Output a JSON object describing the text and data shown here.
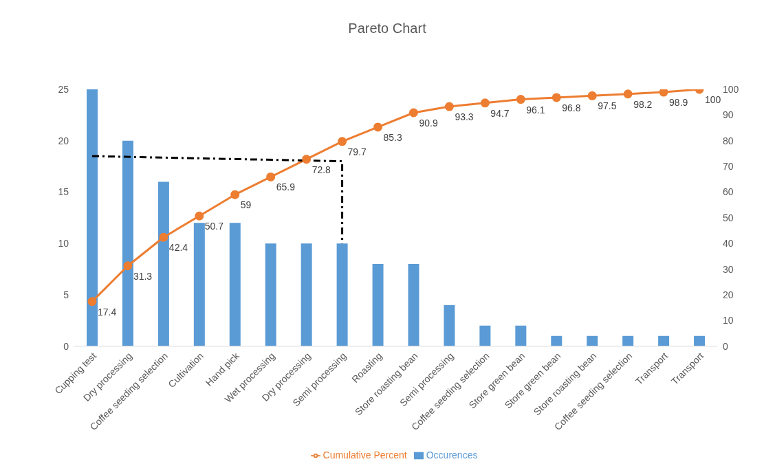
{
  "chart_data": {
    "type": "bar",
    "title": "Pareto Chart",
    "categories": [
      "Cupping test",
      "Dry processing",
      "Coffee seeding selection",
      "Cultivation",
      "Hand pick",
      "Wet processing",
      "Dry processing",
      "Semi processing",
      "Roasting",
      "Store roasting bean",
      "Semi processing",
      "Coffee seeding selection",
      "Store green bean",
      "Store green bean",
      "Store roasting bean",
      "Coffee seeding selection",
      "Transport",
      "Transport"
    ],
    "series": [
      {
        "name": "Occurences",
        "color": "#5b9bd5",
        "values": [
          25,
          20,
          16,
          12,
          12,
          10,
          10,
          10,
          8,
          8,
          4,
          2,
          2,
          1,
          1,
          1,
          1,
          1
        ]
      },
      {
        "name": "Cumulative Percent",
        "type": "line",
        "axis": "y2",
        "color": "#ed7d31",
        "marker": "circle",
        "values": [
          17.4,
          31.3,
          42.4,
          50.7,
          59,
          65.9,
          72.8,
          79.7,
          85.3,
          90.9,
          93.3,
          94.7,
          96.1,
          96.8,
          97.5,
          98.2,
          98.9,
          100
        ],
        "value_labels": [
          "17.4",
          "31.3",
          "42.4",
          "50.7",
          "59",
          "65.9",
          "72.8",
          "79.7",
          "85.3",
          "90.9",
          "93.3",
          "94.7",
          "96.1",
          "96.8",
          "97.5",
          "98.2",
          "98.9",
          "100"
        ]
      },
      {
        "type": "line",
        "axis": "y2",
        "color": "#000000",
        "marker": "none",
        "line_style": "dashed",
        "x": [
          "Cupping test",
          "Semi processing",
          "Semi processing"
        ],
        "values": [
          74,
          72,
          40
        ]
      }
    ],
    "ylim": [
      0,
      25
    ],
    "yticks": [
      0,
      5,
      10,
      15,
      20,
      25
    ],
    "y2lim": [
      0,
      100
    ],
    "y2ticks": [
      0,
      10,
      20,
      30,
      40,
      50,
      60,
      70,
      80,
      90,
      100
    ],
    "grid": false,
    "legend": "bottom"
  }
}
